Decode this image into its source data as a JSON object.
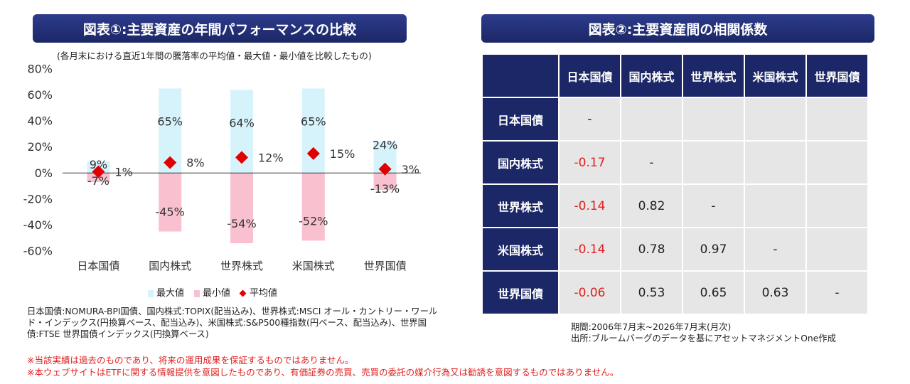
{
  "left_panel": {
    "title": "図表①:主要資産の年間パフォーマンスの比較",
    "subtitle": "(各月末における直近1年間の騰落率の平均値・最大値・最小値を比較したもの)",
    "legend": [
      "最大値",
      "最小値",
      "平均値"
    ],
    "note": "日本国債:NOMURA-BPI国債、国内株式:TOPIX(配当込み)、世界株式:MSCI オール・カントリー・ワールド・インデックス(円換算ベース、配当込み)、米国株式:S&P500種指数(円ベース、配当込み)、世界国債:FTSE 世界国債インデックス(円換算ベース)"
  },
  "chart_data": {
    "type": "bar",
    "categories": [
      "日本国債",
      "国内株式",
      "世界株式",
      "米国株式",
      "世界国債"
    ],
    "series": [
      {
        "name": "最大値",
        "values": [
          9,
          65,
          64,
          65,
          24
        ],
        "color": "#d6f3fc"
      },
      {
        "name": "最小値",
        "values": [
          -7,
          -45,
          -54,
          -52,
          -13
        ],
        "color": "#f9c1d0"
      },
      {
        "name": "平均値",
        "values": [
          1,
          8,
          12,
          15,
          3
        ],
        "color": "#e00000",
        "marker": "diamond"
      }
    ],
    "ylim": [
      -60,
      80
    ],
    "yticks": [
      -60,
      -40,
      -20,
      0,
      20,
      40,
      60,
      80
    ],
    "ytick_labels": [
      "-60%",
      "-40%",
      "-20%",
      "0%",
      "20%",
      "40%",
      "60%",
      "80%"
    ],
    "max_labels": [
      "9%",
      "65%",
      "64%",
      "65%",
      "24%"
    ],
    "min_labels": [
      "-7%",
      "-45%",
      "-54%",
      "-52%",
      "-13%"
    ],
    "avg_labels": [
      "1%",
      "8%",
      "12%",
      "15%",
      "3%"
    ],
    "legend_position": "bottom",
    "grid": false
  },
  "right_panel": {
    "title": "図表②:主要資産間の相関係数",
    "columns": [
      "日本国債",
      "国内株式",
      "世界株式",
      "米国株式",
      "世界国債"
    ],
    "rows": [
      {
        "label": "日本国債",
        "values": [
          "-",
          "",
          "",
          "",
          ""
        ]
      },
      {
        "label": "国内株式",
        "values": [
          "-0.17",
          "-",
          "",
          "",
          ""
        ]
      },
      {
        "label": "世界株式",
        "values": [
          "-0.14",
          "0.82",
          "-",
          "",
          ""
        ]
      },
      {
        "label": "米国株式",
        "values": [
          "-0.14",
          "0.78",
          "0.97",
          "-",
          ""
        ]
      },
      {
        "label": "世界国債",
        "values": [
          "-0.06",
          "0.53",
          "0.65",
          "0.63",
          "-"
        ]
      }
    ],
    "period": "期間:2006年7月末~2026年7月末(月次)",
    "source": "出所:ブルームバーグのデータを基にアセットマネジメントOne作成"
  },
  "disclaimers": [
    "※当該実績は過去のものであり、将来の運用成果を保証するものではありません。",
    "※本ウェブサイトはETFに関する情報提供を意図したものであり、有価証券の売買、売買の委託の媒介行為又は勧誘を意図するものではありません。"
  ]
}
